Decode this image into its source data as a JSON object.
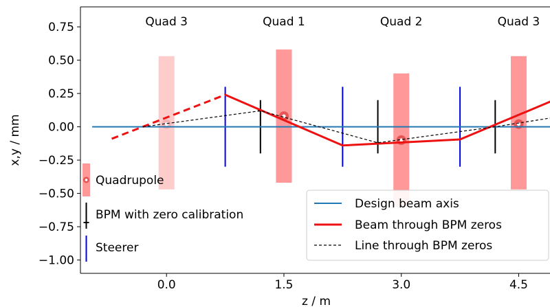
{
  "chart_data": {
    "type": "line",
    "xlabel": "z / m",
    "ylabel": "x,y / mm",
    "xlim": [
      -1.1,
      4.9
    ],
    "ylim": [
      -1.1,
      0.9
    ],
    "xticks": [
      {
        "value": 0.0,
        "label": "0.0"
      },
      {
        "value": 1.5,
        "label": "1.5"
      },
      {
        "value": 3.0,
        "label": "3.0"
      },
      {
        "value": 4.5,
        "label": "4.5"
      }
    ],
    "yticks": [
      {
        "value": 0.75,
        "label": "0.75"
      },
      {
        "value": 0.5,
        "label": "0.50"
      },
      {
        "value": 0.25,
        "label": "0.25"
      },
      {
        "value": 0.0,
        "label": "0.00"
      },
      {
        "value": -0.25,
        "label": "−0.25"
      },
      {
        "value": -0.5,
        "label": "−0.50"
      },
      {
        "value": -0.75,
        "label": "−0.75"
      },
      {
        "value": -1.0,
        "label": "−1.00"
      }
    ],
    "grid": false,
    "quad_labels": [
      {
        "x": 0.0,
        "label": "Quad 3"
      },
      {
        "x": 1.5,
        "label": "Quad 1"
      },
      {
        "x": 3.0,
        "label": "Quad 2"
      },
      {
        "x": 4.5,
        "label": "Quad 3"
      }
    ],
    "quadrupoles": [
      {
        "z": 0.0,
        "y_low": -0.47,
        "y_high": 0.53,
        "offset": 0.02,
        "faded": true
      },
      {
        "z": 1.5,
        "y_low": -0.42,
        "y_high": 0.58,
        "offset": 0.08,
        "faded": false
      },
      {
        "z": 3.0,
        "y_low": -0.6,
        "y_high": 0.4,
        "offset": -0.1,
        "faded": false
      },
      {
        "z": 4.5,
        "y_low": -0.47,
        "y_high": 0.53,
        "offset": 0.02,
        "faded": false
      }
    ],
    "bpms": [
      {
        "z": 1.2,
        "y_low": -0.2,
        "y_high": 0.2,
        "zero": 0.12
      },
      {
        "z": 2.7,
        "y_low": -0.2,
        "y_high": 0.2,
        "zero": -0.12
      },
      {
        "z": 4.2,
        "y_low": -0.2,
        "y_high": 0.2,
        "zero": 0.0
      }
    ],
    "steerers": [
      {
        "z": 0.75,
        "y_low": -0.3,
        "y_high": 0.3
      },
      {
        "z": 2.25,
        "y_low": -0.3,
        "y_high": 0.3
      },
      {
        "z": 3.75,
        "y_low": -0.3,
        "y_high": 0.3
      }
    ],
    "series": [
      {
        "name": "Design beam axis",
        "style": "solid",
        "color": "#1f77b4",
        "x": [
          -0.95,
          4.95
        ],
        "y": [
          0.0,
          0.0
        ]
      },
      {
        "name": "Beam through BPM zeros",
        "style": "solid",
        "color": "#ee1111",
        "x": [
          0.75,
          2.25,
          3.75,
          4.95
        ],
        "y": [
          0.24,
          -0.14,
          -0.095,
          0.2
        ]
      },
      {
        "name": "",
        "style": "dashed",
        "color": "#ee1111",
        "x": [
          -0.7,
          0.75
        ],
        "y": [
          -0.09,
          0.24
        ]
      },
      {
        "name": "Line through BPM zeros",
        "style": "dashed-thin",
        "color": "#000000",
        "x": [
          -0.3,
          1.2,
          2.7,
          4.2,
          4.95
        ],
        "y": [
          0.0,
          0.12,
          -0.12,
          0.0,
          0.07
        ]
      }
    ],
    "legend_left": {
      "placement": "middle-left",
      "items": [
        {
          "label": "Quadrupole",
          "kind": "quadrupole"
        },
        {
          "label": "BPM with zero calibration",
          "kind": "bpm"
        },
        {
          "label": "Steerer",
          "kind": "steerer"
        }
      ]
    },
    "legend_right": {
      "placement": "bottom-right",
      "items": [
        {
          "label": "Design beam axis",
          "kind": "axis-line"
        },
        {
          "label": "Beam through BPM zeros",
          "kind": "beam-line"
        },
        {
          "label": "Line through BPM zeros",
          "kind": "bpm-line"
        }
      ]
    },
    "colors": {
      "quad": "#ff9999",
      "quad_faded": "#ffcccc",
      "beam": "#ee1111",
      "design": "#1f77b4",
      "steerer": "#0000ee",
      "bpm": "#000000"
    }
  }
}
